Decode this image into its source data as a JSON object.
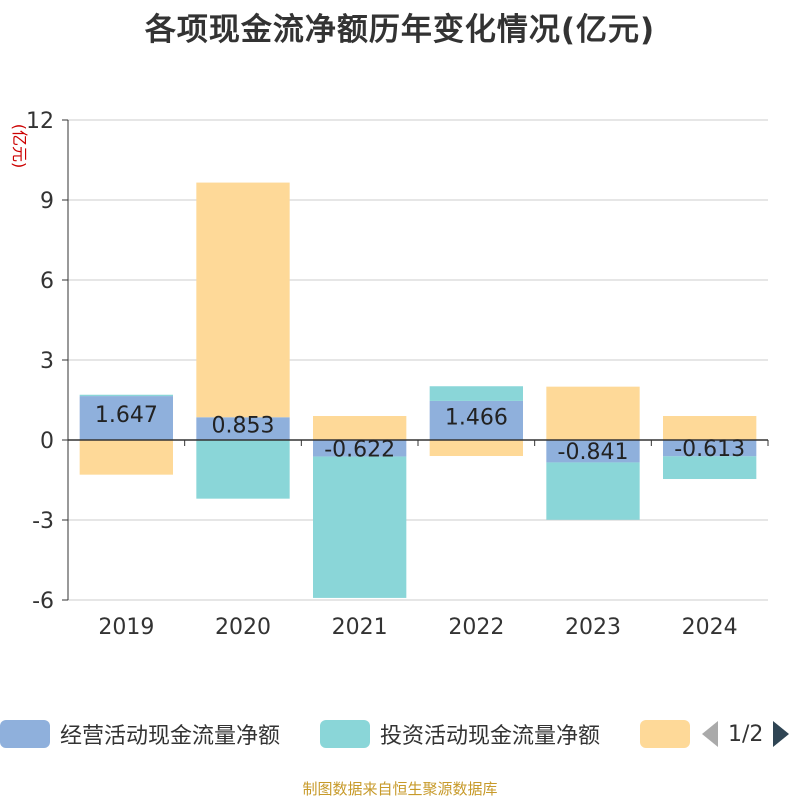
{
  "chart_data": {
    "type": "bar",
    "stacked": true,
    "title": "各项现金流净额历年变化情况(亿元)",
    "ylabel": "(亿元)",
    "xlabel": "",
    "ylim": [
      -6,
      12
    ],
    "yticks": [
      -6,
      -3,
      0,
      3,
      6,
      9,
      12
    ],
    "ytick_labels": [
      "-6",
      "-3",
      "0",
      "3",
      "6",
      "9",
      "12"
    ],
    "categories": [
      "2019",
      "2020",
      "2021",
      "2022",
      "2023",
      "2024"
    ],
    "series": [
      {
        "name": "经营活动现金流量净额",
        "color": "#8fb0dc",
        "values": [
          1.647,
          0.853,
          -0.622,
          1.466,
          -0.841,
          -0.613
        ],
        "labels": [
          "1.647",
          "0.853",
          "-0.622",
          "1.466",
          "-0.841",
          "-0.613"
        ]
      },
      {
        "name": "投资活动现金流量净额",
        "color": "#8ad6d8",
        "values": [
          0.05,
          -2.2,
          -5.3,
          0.55,
          -2.15,
          -0.85
        ]
      },
      {
        "name": "",
        "color": "#fed998",
        "values": [
          -1.3,
          8.8,
          0.9,
          -0.6,
          2.0,
          0.9
        ]
      }
    ],
    "grid": true,
    "legend_position": "bottom"
  },
  "legend": {
    "items": [
      {
        "label": "经营活动现金流量净额",
        "color": "#8fb0dc"
      },
      {
        "label": "投资活动现金流量净额",
        "color": "#8ad6d8"
      },
      {
        "label": "",
        "color": "#fed998"
      }
    ],
    "page_label": "1/2"
  },
  "source": "制图数据来自恒生聚源数据库"
}
